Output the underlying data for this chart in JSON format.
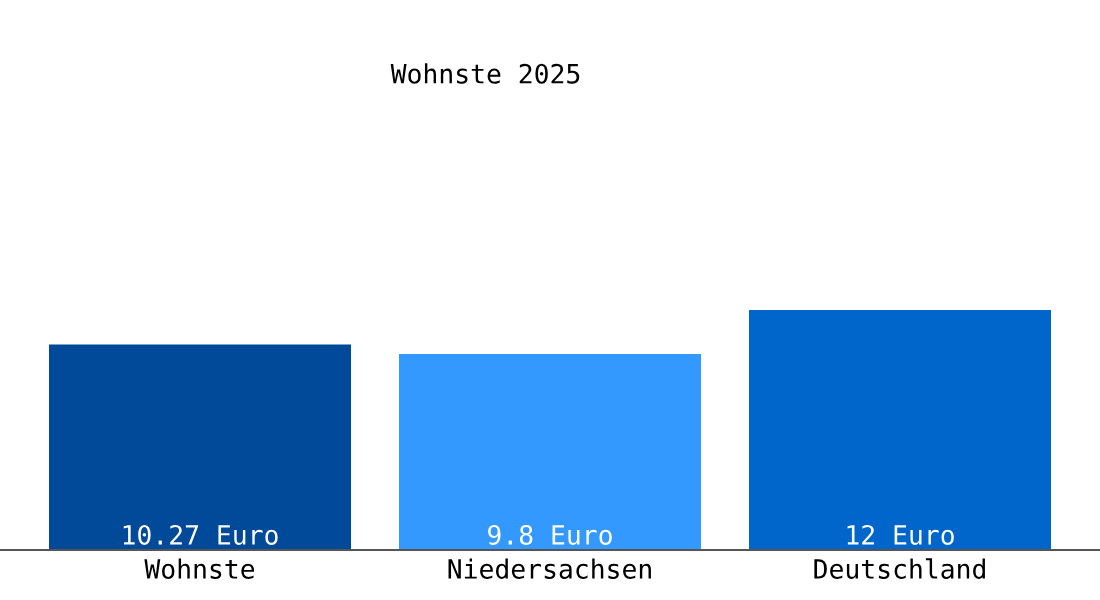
{
  "chart_data": {
    "type": "bar",
    "title": "Wohnste 2025",
    "categories": [
      "Wohnste",
      "Niedersachsen",
      "Deutschland"
    ],
    "values": [
      10.27,
      9.8,
      12
    ],
    "colors": [
      "#004a99",
      "#3399ff",
      "#0066cc"
    ],
    "value_labels": [
      "10.27 Euro",
      "9.8 Euro",
      "12 Euro"
    ],
    "grid": false,
    "legend": false
  }
}
